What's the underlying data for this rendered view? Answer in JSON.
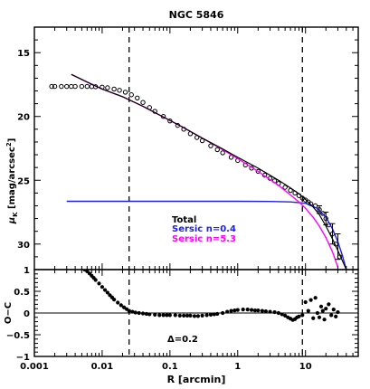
{
  "chart_data": [
    {
      "type": "line",
      "panel": "upper",
      "title": "NGC 5846",
      "xscale": "log",
      "xlim": [
        0.001,
        60
      ],
      "ylabel_main": "μ",
      "ylabel_sub": "K",
      "ylabel_rest": " [mag/arcsec",
      "ylabel_sup": "2",
      "ylabel_end": "]",
      "ylim": [
        32,
        13
      ],
      "yticks": [
        15,
        20,
        25,
        30
      ],
      "vlines": [
        0.025,
        9
      ],
      "legend": [
        {
          "label": "Total",
          "color": "#000000"
        },
        {
          "label": "Sersic n=0.4",
          "color": "#2020e0"
        },
        {
          "label": "Sersic n=5.3",
          "color": "#ff00ff"
        }
      ],
      "series": [
        {
          "name": "Total",
          "color": "#000000",
          "x": [
            0.0035,
            0.006,
            0.01,
            0.02,
            0.04,
            0.08,
            0.15,
            0.3,
            0.6,
            1,
            2,
            4,
            6,
            8,
            10,
            13,
            16,
            20,
            25,
            30,
            40
          ],
          "y": [
            16.7,
            17.3,
            17.85,
            18.45,
            19.2,
            20.05,
            20.8,
            21.7,
            22.55,
            23.2,
            24.05,
            25.0,
            25.6,
            26.05,
            26.5,
            27.1,
            27.7,
            28.6,
            29.6,
            30.5,
            32.0
          ]
        },
        {
          "name": "Sersic n=0.4",
          "color": "#2020e0",
          "x": [
            0.003,
            0.1,
            1,
            3,
            6,
            10,
            15,
            20,
            25,
            30,
            35,
            40
          ],
          "y": [
            26.65,
            26.65,
            26.65,
            26.66,
            26.7,
            26.8,
            27.2,
            27.9,
            28.8,
            29.8,
            30.9,
            32.0
          ]
        },
        {
          "name": "Sersic n=5.3",
          "color": "#ff00ff",
          "x": [
            0.0035,
            0.006,
            0.01,
            0.02,
            0.04,
            0.08,
            0.15,
            0.3,
            0.6,
            1,
            2,
            4,
            6,
            8,
            10,
            13,
            16,
            20,
            25,
            30
          ],
          "y": [
            16.7,
            17.3,
            17.85,
            18.45,
            19.2,
            20.05,
            20.8,
            21.7,
            22.6,
            23.3,
            24.3,
            25.4,
            26.15,
            26.7,
            27.2,
            27.9,
            28.6,
            29.5,
            30.6,
            31.8
          ]
        }
      ],
      "observed": {
        "x": [
          0.0018,
          0.002,
          0.0025,
          0.003,
          0.0035,
          0.004,
          0.005,
          0.006,
          0.007,
          0.008,
          0.01,
          0.012,
          0.015,
          0.018,
          0.022,
          0.027,
          0.033,
          0.04,
          0.05,
          0.06,
          0.08,
          0.1,
          0.13,
          0.16,
          0.2,
          0.25,
          0.3,
          0.4,
          0.5,
          0.6,
          0.8,
          1,
          1.3,
          1.6,
          2,
          2.5,
          3,
          3.5,
          4,
          5,
          6,
          7,
          8,
          9,
          10,
          11,
          12,
          14,
          16,
          18,
          20,
          22,
          25,
          28,
          32
        ],
        "y": [
          17.65,
          17.65,
          17.65,
          17.65,
          17.65,
          17.65,
          17.65,
          17.65,
          17.66,
          17.67,
          17.7,
          17.75,
          17.85,
          17.95,
          18.1,
          18.3,
          18.55,
          18.9,
          19.3,
          19.6,
          20.0,
          20.35,
          20.7,
          21.0,
          21.35,
          21.65,
          21.9,
          22.3,
          22.6,
          22.85,
          23.2,
          23.45,
          23.8,
          24.05,
          24.3,
          24.6,
          24.85,
          25.05,
          25.25,
          25.55,
          25.8,
          26.0,
          26.2,
          26.4,
          26.55,
          26.7,
          26.85,
          27.0,
          27.3,
          27.6,
          28.0,
          28.5,
          29.2,
          30.0,
          31.0
        ]
      },
      "errorbars": [
        {
          "x": 16,
          "y": 27.3,
          "err": 0.3
        },
        {
          "x": 20,
          "y": 28.0,
          "err": 0.5
        },
        {
          "x": 25,
          "y": 29.2,
          "err": 0.8
        },
        {
          "x": 30,
          "y": 30.2,
          "err": 1.0
        }
      ]
    },
    {
      "type": "scatter",
      "panel": "lower",
      "xlabel": "R [arcmin]",
      "ylabel": "O−C",
      "xscale": "log",
      "xlim": [
        0.001,
        60
      ],
      "ylim": [
        -1,
        1
      ],
      "yticks": [
        1,
        0.5,
        0,
        -0.5,
        -1
      ],
      "ytick_labels": [
        "1",
        "0.5",
        "0",
        "−0.5",
        "−1"
      ],
      "xticks": [
        0.001,
        0.01,
        0.1,
        1,
        10
      ],
      "xtick_labels": [
        "0.001",
        "0.01",
        "0.1",
        "1",
        "10"
      ],
      "hline": 0,
      "vlines": [
        0.025,
        9
      ],
      "annotation": "Δ=0.2",
      "x": [
        0.0055,
        0.006,
        0.0065,
        0.007,
        0.0075,
        0.008,
        0.009,
        0.01,
        0.011,
        0.012,
        0.013,
        0.014,
        0.015,
        0.017,
        0.019,
        0.021,
        0.023,
        0.025,
        0.028,
        0.031,
        0.035,
        0.04,
        0.045,
        0.05,
        0.06,
        0.07,
        0.08,
        0.09,
        0.1,
        0.12,
        0.14,
        0.16,
        0.18,
        0.2,
        0.23,
        0.26,
        0.3,
        0.35,
        0.4,
        0.45,
        0.5,
        0.6,
        0.7,
        0.8,
        0.9,
        1,
        1.2,
        1.4,
        1.6,
        1.8,
        2,
        2.3,
        2.6,
        3,
        3.5,
        4,
        4.5,
        5,
        5.5,
        6,
        6.5,
        7,
        7.5,
        8,
        9,
        10,
        11,
        12,
        13,
        14,
        15,
        16,
        17,
        18,
        19,
        20,
        22,
        24,
        26,
        28,
        30
      ],
      "y": [
        1.0,
        0.96,
        0.91,
        0.86,
        0.81,
        0.76,
        0.68,
        0.6,
        0.53,
        0.47,
        0.41,
        0.36,
        0.31,
        0.24,
        0.18,
        0.13,
        0.09,
        0.05,
        0.03,
        0.01,
        0.0,
        -0.01,
        -0.02,
        -0.03,
        -0.04,
        -0.05,
        -0.05,
        -0.05,
        -0.05,
        -0.05,
        -0.06,
        -0.06,
        -0.06,
        -0.06,
        -0.07,
        -0.07,
        -0.06,
        -0.05,
        -0.04,
        -0.03,
        -0.02,
        0.0,
        0.03,
        0.05,
        0.06,
        0.07,
        0.08,
        0.08,
        0.07,
        0.06,
        0.06,
        0.05,
        0.04,
        0.03,
        0.02,
        0.0,
        -0.03,
        -0.06,
        -0.1,
        -0.13,
        -0.16,
        -0.14,
        -0.1,
        -0.08,
        -0.05,
        0.25,
        0.05,
        0.3,
        -0.12,
        0.35,
        0.0,
        -0.1,
        0.15,
        0.05,
        -0.15,
        0.1,
        0.2,
        -0.05,
        0.08,
        -0.08,
        0.02
      ]
    }
  ]
}
